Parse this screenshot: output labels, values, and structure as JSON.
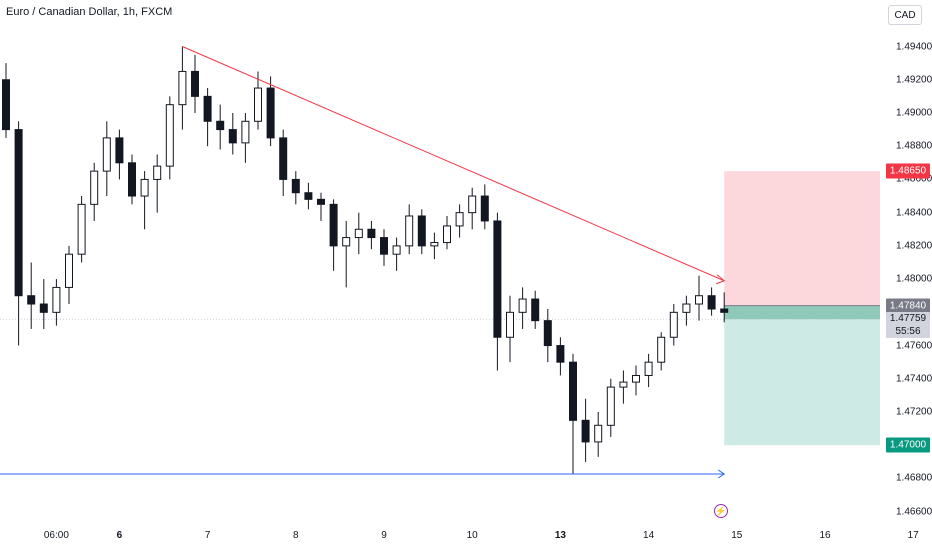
{
  "header": {
    "title": "Euro / Canadian Dollar, 1h, FXCM"
  },
  "toolbar": {
    "currency_label": "CAD"
  },
  "chart_data": {
    "type": "candlestick",
    "symbol": "Euro / Canadian Dollar",
    "interval": "1h",
    "source": "FXCM",
    "ylim": [
      1.4655,
      1.4968
    ],
    "y_ticks": [
      "1.49400",
      "1.49200",
      "1.49000",
      "1.48800",
      "1.48600",
      "1.48400",
      "1.48200",
      "1.48000",
      "1.47600",
      "1.47400",
      "1.47200",
      "1.46800",
      "1.46600"
    ],
    "x_ticks": [
      {
        "label": "06:00",
        "bold": false,
        "index": 4
      },
      {
        "label": "6",
        "bold": true,
        "index": 9
      },
      {
        "label": "7",
        "bold": false,
        "index": 16
      },
      {
        "label": "8",
        "bold": false,
        "index": 23
      },
      {
        "label": "9",
        "bold": false,
        "index": 30
      },
      {
        "label": "10",
        "bold": false,
        "index": 37
      },
      {
        "label": "13",
        "bold": true,
        "index": 44
      },
      {
        "label": "14",
        "bold": false,
        "index": 51
      },
      {
        "label": "15",
        "bold": false,
        "index": 58
      },
      {
        "label": "16",
        "bold": false,
        "index": 65
      },
      {
        "label": "17",
        "bold": false,
        "index": 72
      }
    ],
    "candles": [
      [
        1.492,
        1.493,
        1.4885,
        1.489
      ],
      [
        1.489,
        1.4895,
        1.476,
        1.479
      ],
      [
        1.479,
        1.481,
        1.477,
        1.4785
      ],
      [
        1.4785,
        1.48,
        1.477,
        1.478
      ],
      [
        1.478,
        1.48,
        1.4772,
        1.4795
      ],
      [
        1.4795,
        1.482,
        1.4785,
        1.4815
      ],
      [
        1.4815,
        1.485,
        1.481,
        1.4845
      ],
      [
        1.4845,
        1.487,
        1.4835,
        1.4865
      ],
      [
        1.4865,
        1.4895,
        1.485,
        1.4885
      ],
      [
        1.4885,
        1.489,
        1.486,
        1.487
      ],
      [
        1.487,
        1.4875,
        1.4845,
        1.485
      ],
      [
        1.485,
        1.4865,
        1.483,
        1.486
      ],
      [
        1.486,
        1.4875,
        1.484,
        1.4868
      ],
      [
        1.4868,
        1.491,
        1.486,
        1.4905
      ],
      [
        1.4905,
        1.494,
        1.489,
        1.4925
      ],
      [
        1.4925,
        1.4935,
        1.49,
        1.491
      ],
      [
        1.491,
        1.4915,
        1.488,
        1.4895
      ],
      [
        1.4895,
        1.4905,
        1.4878,
        1.489
      ],
      [
        1.489,
        1.49,
        1.4875,
        1.4882
      ],
      [
        1.4882,
        1.49,
        1.487,
        1.4895
      ],
      [
        1.4895,
        1.4925,
        1.489,
        1.4915
      ],
      [
        1.4915,
        1.4922,
        1.488,
        1.4885
      ],
      [
        1.4885,
        1.489,
        1.485,
        1.486
      ],
      [
        1.486,
        1.4865,
        1.4845,
        1.4852
      ],
      [
        1.4852,
        1.4858,
        1.4842,
        1.4848
      ],
      [
        1.4848,
        1.4852,
        1.4835,
        1.4845
      ],
      [
        1.4845,
        1.4848,
        1.4805,
        1.482
      ],
      [
        1.482,
        1.4835,
        1.4795,
        1.4825
      ],
      [
        1.4825,
        1.484,
        1.4815,
        1.483
      ],
      [
        1.483,
        1.4835,
        1.4818,
        1.4825
      ],
      [
        1.4825,
        1.483,
        1.4808,
        1.4815
      ],
      [
        1.4815,
        1.4825,
        1.4805,
        1.482
      ],
      [
        1.482,
        1.4845,
        1.4815,
        1.4838
      ],
      [
        1.4838,
        1.4842,
        1.4815,
        1.482
      ],
      [
        1.482,
        1.4828,
        1.4812,
        1.4822
      ],
      [
        1.4822,
        1.4838,
        1.4818,
        1.4832
      ],
      [
        1.4832,
        1.4845,
        1.4825,
        1.484
      ],
      [
        1.484,
        1.4855,
        1.483,
        1.485
      ],
      [
        1.485,
        1.4857,
        1.483,
        1.4835
      ],
      [
        1.4835,
        1.484,
        1.4745,
        1.4765
      ],
      [
        1.4765,
        1.479,
        1.475,
        1.478
      ],
      [
        1.478,
        1.4795,
        1.477,
        1.4788
      ],
      [
        1.4788,
        1.4793,
        1.477,
        1.4775
      ],
      [
        1.4775,
        1.4782,
        1.475,
        1.476
      ],
      [
        1.476,
        1.4765,
        1.4742,
        1.475
      ],
      [
        1.475,
        1.4755,
        1.4683,
        1.4715
      ],
      [
        1.4715,
        1.4728,
        1.469,
        1.4702
      ],
      [
        1.4702,
        1.472,
        1.4693,
        1.4712
      ],
      [
        1.4712,
        1.474,
        1.4705,
        1.4735
      ],
      [
        1.4735,
        1.4745,
        1.4725,
        1.4738
      ],
      [
        1.4738,
        1.4748,
        1.473,
        1.4742
      ],
      [
        1.4742,
        1.4755,
        1.4735,
        1.475
      ],
      [
        1.475,
        1.4768,
        1.4745,
        1.4765
      ],
      [
        1.4765,
        1.4785,
        1.476,
        1.478
      ],
      [
        1.478,
        1.479,
        1.4772,
        1.4785
      ],
      [
        1.4785,
        1.4802,
        1.4775,
        1.479
      ],
      [
        1.479,
        1.4795,
        1.4778,
        1.4782
      ],
      [
        1.4782,
        1.4792,
        1.4774,
        1.478
      ]
    ],
    "annotations": [
      {
        "type": "trendline",
        "from": [
          14,
          1.494
        ],
        "to": [
          44,
          1.4856
        ],
        "to2": [
          57,
          1.4799
        ],
        "color": "#f23645",
        "arrow": true
      },
      {
        "type": "horizontal_ray",
        "from": [
          45,
          1.46827
        ],
        "to": [
          57,
          1.46827
        ],
        "color": "#2962ff",
        "arrow": true
      }
    ],
    "position": {
      "type": "short",
      "entry": "1.47840",
      "stop": "1.48650",
      "target": "1.47000",
      "entry_value": 1.4784,
      "stop_value": 1.4865,
      "target_value": 1.47,
      "start_index": 57,
      "end_index": 70,
      "stop_fill": "#fcd8dc",
      "target_fill": "#cdebe4",
      "entry_band_fill": "#8ec9ba"
    },
    "current_price": {
      "value": 1.47759,
      "label": "1.47759",
      "countdown": "55:56"
    },
    "price_tags": {
      "stop": {
        "label": "1.48650",
        "color": "#f23645"
      },
      "entry": {
        "label": "1.47840",
        "color": "#787b86"
      },
      "target": {
        "label": "1.47000",
        "color": "#089981"
      }
    },
    "up_color": "#131722",
    "down_color": "#131722"
  }
}
